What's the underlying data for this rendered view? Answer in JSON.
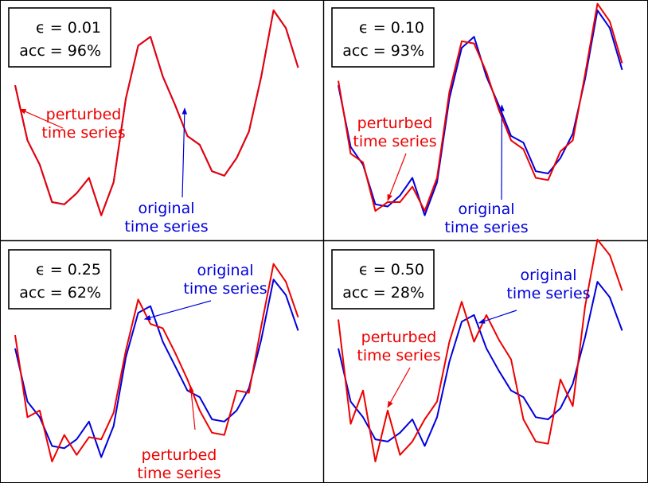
{
  "chart_data": [
    {
      "type": "line",
      "x": [
        1,
        2,
        3,
        4,
        5,
        6,
        7,
        8,
        9,
        10,
        11,
        12,
        13,
        14,
        15,
        16,
        17,
        18,
        19,
        20,
        21,
        22,
        23,
        24,
        25
      ],
      "ylim": [
        0,
        1
      ],
      "series": [
        {
          "name": "original time series",
          "color": "#0000dd",
          "values": [
            0.66,
            0.41,
            0.3,
            0.13,
            0.12,
            0.17,
            0.24,
            0.07,
            0.22,
            0.6,
            0.84,
            0.88,
            0.7,
            0.57,
            0.43,
            0.39,
            0.27,
            0.25,
            0.33,
            0.45,
            0.7,
            1.0,
            0.92,
            0.74,
            null
          ]
        },
        {
          "name": "perturbed time series",
          "color": "#ee0000",
          "values": [
            0.66,
            0.41,
            0.3,
            0.13,
            0.12,
            0.17,
            0.24,
            0.07,
            0.22,
            0.6,
            0.84,
            0.88,
            0.7,
            0.57,
            0.43,
            0.39,
            0.27,
            0.25,
            0.33,
            0.45,
            0.7,
            1.0,
            0.92,
            0.74,
            null
          ]
        }
      ],
      "info": {
        "epsilon_label": "ϵ = 0.01",
        "acc_label": "acc = 96%"
      },
      "annotations": [
        {
          "lines": [
            "perturbed",
            "time series"
          ],
          "color": "#ee0000"
        },
        {
          "lines": [
            "original",
            "time series"
          ],
          "color": "#0000dd"
        }
      ]
    },
    {
      "type": "line",
      "x": [
        1,
        2,
        3,
        4,
        5,
        6,
        7,
        8,
        9,
        10,
        11,
        12,
        13,
        14,
        15,
        16,
        17,
        18,
        19,
        20,
        21,
        22,
        23,
        24,
        25
      ],
      "ylim": [
        0,
        1
      ],
      "series": [
        {
          "name": "original time series",
          "color": "#0000dd",
          "values": [
            0.66,
            0.38,
            0.3,
            0.12,
            0.11,
            0.16,
            0.24,
            0.07,
            0.22,
            0.6,
            0.83,
            0.88,
            0.7,
            0.57,
            0.43,
            0.4,
            0.27,
            0.26,
            0.33,
            0.44,
            0.69,
            1.0,
            0.92,
            0.73,
            null
          ]
        },
        {
          "name": "perturbed time series",
          "color": "#ee0000",
          "values": [
            0.68,
            0.35,
            0.31,
            0.09,
            0.13,
            0.13,
            0.2,
            0.09,
            0.24,
            0.63,
            0.86,
            0.85,
            0.72,
            0.55,
            0.41,
            0.37,
            0.24,
            0.23,
            0.36,
            0.41,
            0.71,
            1.03,
            0.95,
            0.76,
            null
          ]
        }
      ],
      "info": {
        "epsilon_label": "ϵ = 0.10",
        "acc_label": "acc = 93%"
      },
      "annotations": [
        {
          "lines": [
            "perturbed",
            "time series"
          ],
          "color": "#ee0000"
        },
        {
          "lines": [
            "original",
            "time series"
          ],
          "color": "#0000dd"
        }
      ]
    },
    {
      "type": "line",
      "x": [
        1,
        2,
        3,
        4,
        5,
        6,
        7,
        8,
        9,
        10,
        11,
        12,
        13,
        14,
        15,
        16,
        17,
        18,
        19,
        20,
        21,
        22,
        23,
        24,
        25
      ],
      "ylim": [
        0,
        1
      ],
      "series": [
        {
          "name": "original time series",
          "color": "#0000dd",
          "values": [
            0.56,
            0.32,
            0.25,
            0.12,
            0.11,
            0.15,
            0.23,
            0.07,
            0.21,
            0.52,
            0.72,
            0.75,
            0.59,
            0.48,
            0.37,
            0.34,
            0.24,
            0.23,
            0.28,
            0.38,
            0.6,
            0.87,
            0.8,
            0.64,
            null
          ]
        },
        {
          "name": "perturbed time series",
          "color": "#ee0000",
          "values": [
            0.62,
            0.25,
            0.28,
            0.05,
            0.17,
            0.08,
            0.16,
            0.15,
            0.27,
            0.55,
            0.78,
            0.67,
            0.65,
            0.54,
            0.42,
            0.28,
            0.18,
            0.17,
            0.37,
            0.36,
            0.66,
            0.94,
            0.86,
            0.7,
            null
          ]
        }
      ],
      "info": {
        "epsilon_label": "ϵ = 0.25",
        "acc_label": "acc = 62%"
      },
      "annotations": [
        {
          "lines": [
            "original",
            "time series"
          ],
          "color": "#0000dd"
        },
        {
          "lines": [
            "perturbed",
            "time series"
          ],
          "color": "#ee0000"
        }
      ]
    },
    {
      "type": "line",
      "x": [
        1,
        2,
        3,
        4,
        5,
        6,
        7,
        8,
        9,
        10,
        11,
        12,
        13,
        14,
        15,
        16,
        17,
        18,
        19,
        20,
        21,
        22,
        23,
        24,
        25
      ],
      "ylim": [
        0,
        1
      ],
      "series": [
        {
          "name": "original time series",
          "color": "#0000dd",
          "values": [
            0.56,
            0.32,
            0.25,
            0.15,
            0.14,
            0.18,
            0.24,
            0.12,
            0.25,
            0.5,
            0.68,
            0.71,
            0.56,
            0.46,
            0.37,
            0.34,
            0.25,
            0.24,
            0.29,
            0.4,
            0.61,
            0.86,
            0.79,
            0.64,
            null
          ]
        },
        {
          "name": "perturbed time series",
          "color": "#ee0000",
          "values": [
            0.69,
            0.22,
            0.37,
            0.05,
            0.28,
            0.08,
            0.14,
            0.24,
            0.32,
            0.59,
            0.77,
            0.59,
            0.71,
            0.6,
            0.51,
            0.24,
            0.14,
            0.13,
            0.42,
            0.3,
            0.75,
            1.05,
            0.98,
            0.82,
            null
          ]
        }
      ],
      "info": {
        "epsilon_label": "ϵ = 0.50",
        "acc_label": "acc = 28%"
      },
      "annotations": [
        {
          "lines": [
            "original",
            "time series"
          ],
          "color": "#0000dd"
        },
        {
          "lines": [
            "perturbed",
            "time series"
          ],
          "color": "#ee0000"
        }
      ]
    }
  ]
}
